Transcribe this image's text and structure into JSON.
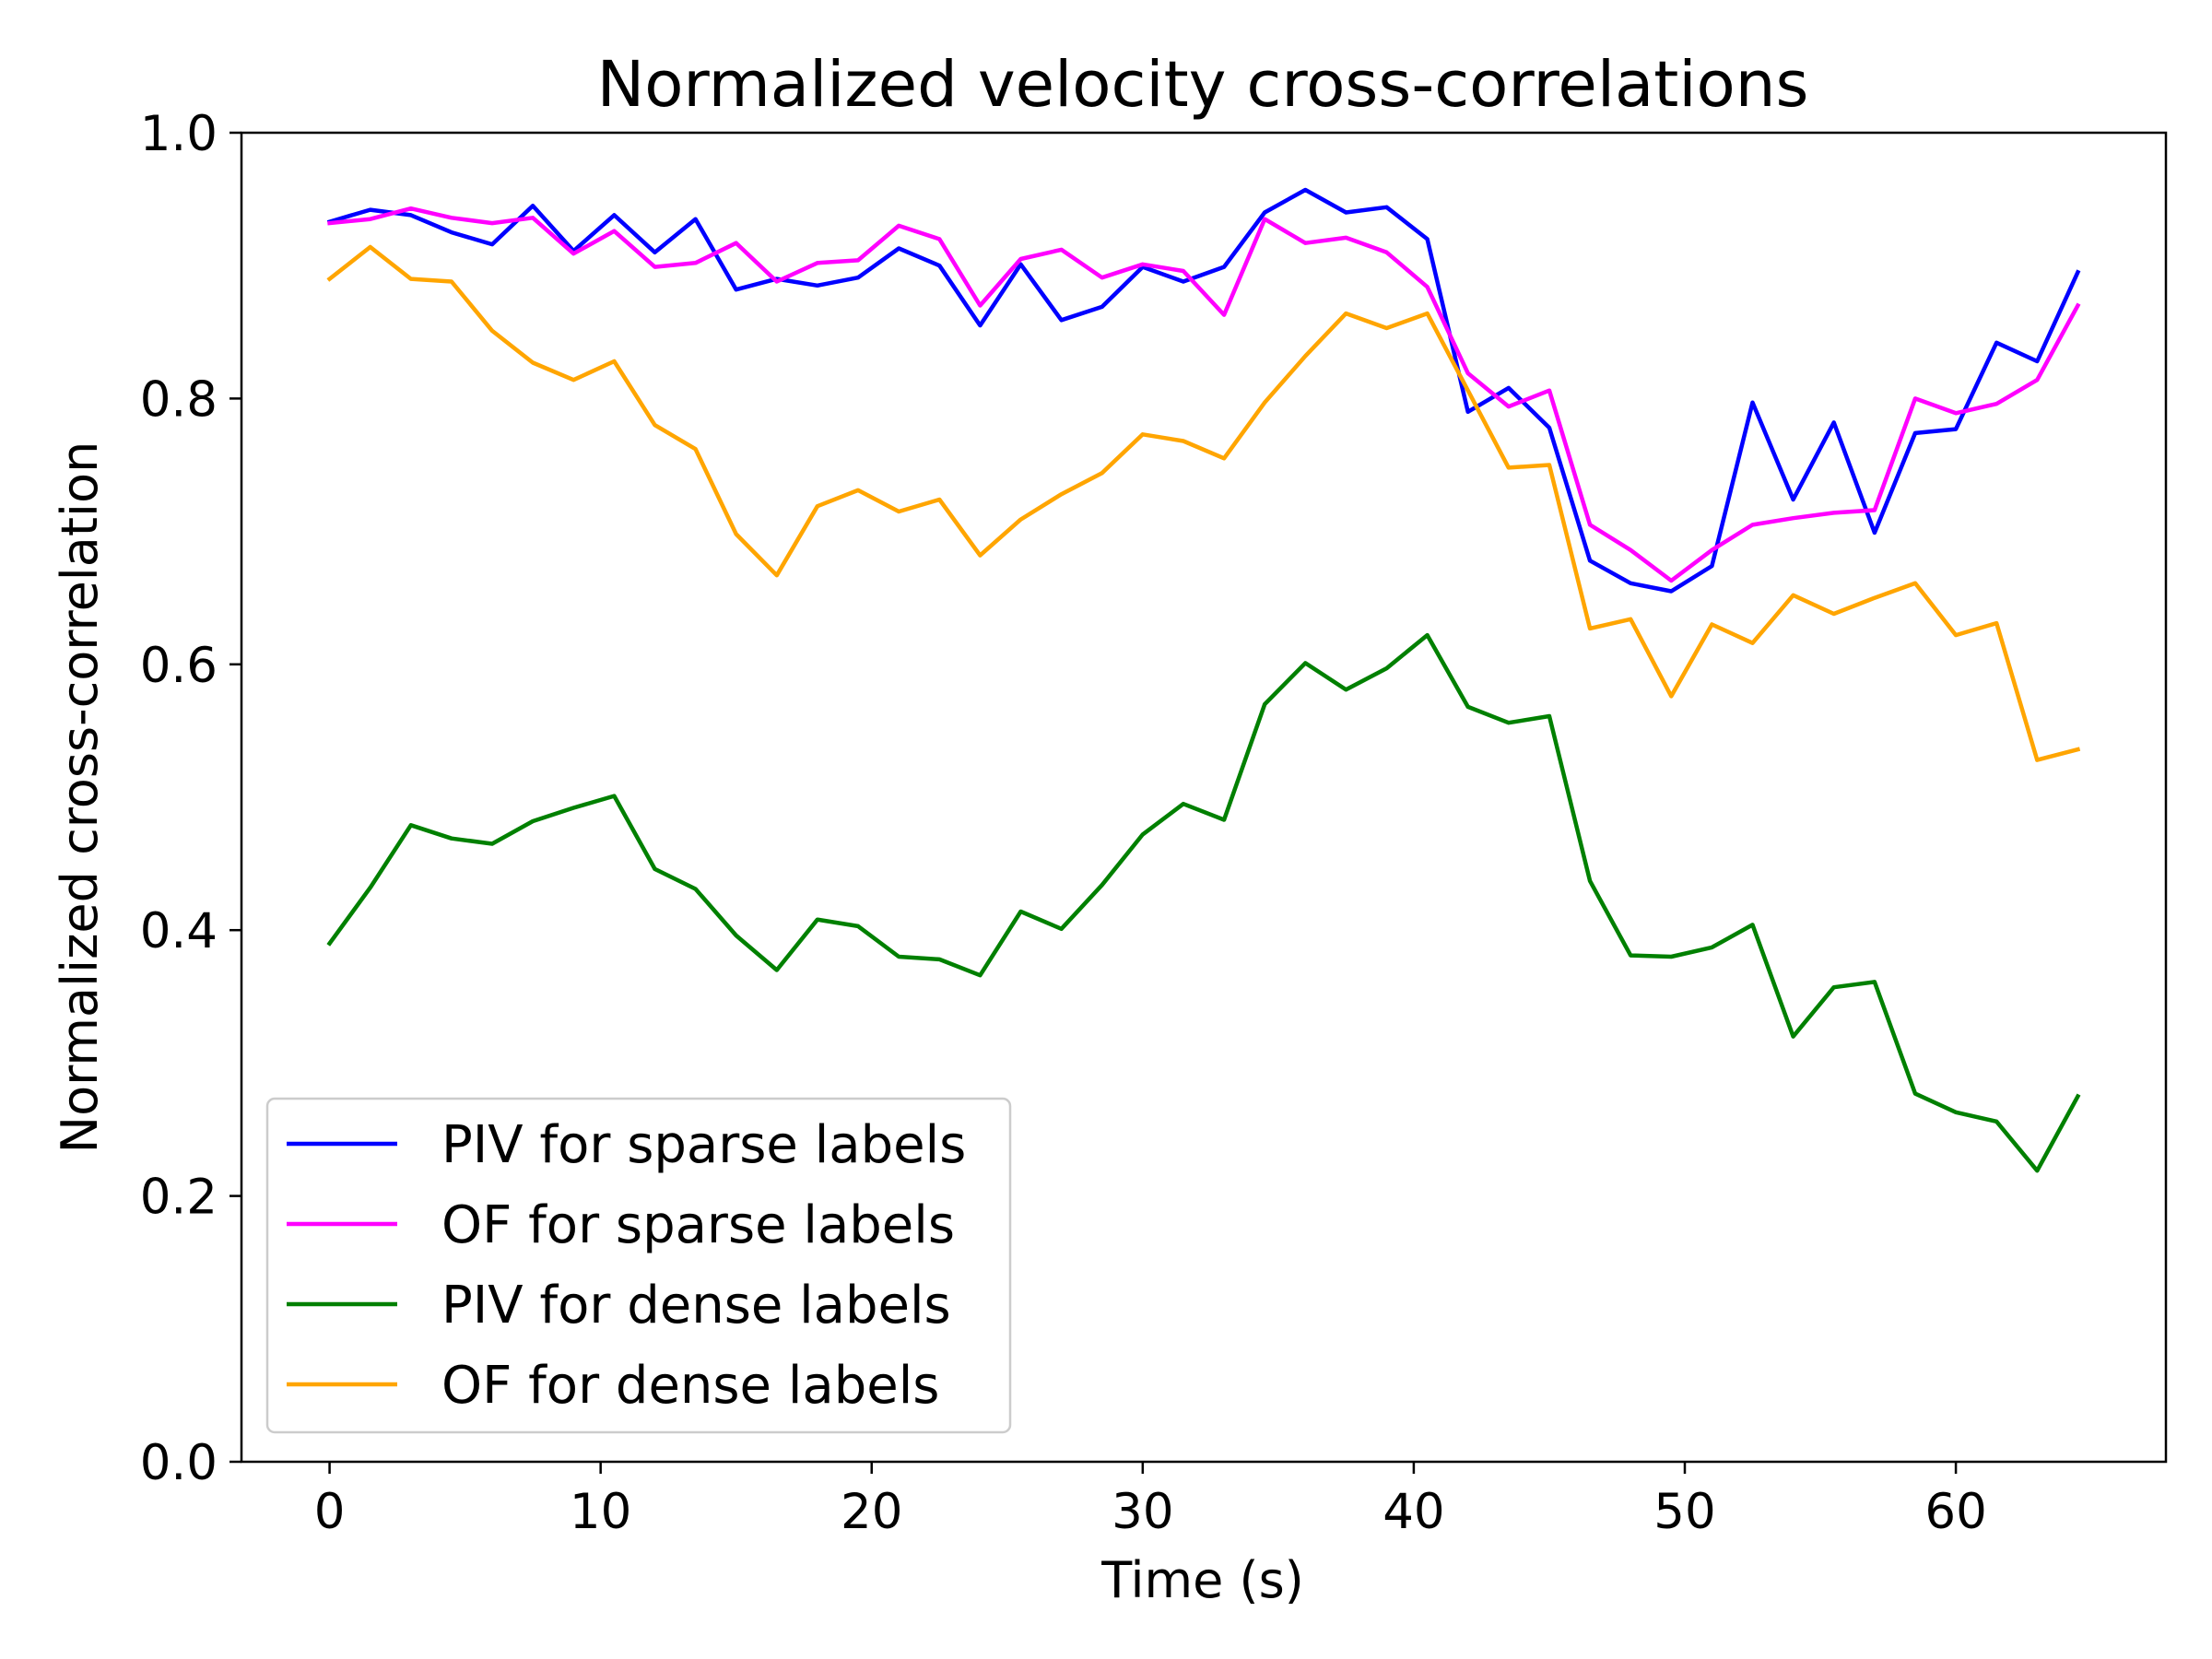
{
  "chart_data": {
    "type": "line",
    "title": "Normalized velocity cross-correlations",
    "xlabel": "Time (s)",
    "ylabel": "Normalized cross-correlation",
    "xlim": [
      -3.25,
      67.75
    ],
    "ylim": [
      0.0,
      1.0
    ],
    "xticks": [
      0,
      10,
      20,
      30,
      40,
      50,
      60
    ],
    "yticks": [
      0.0,
      0.2,
      0.4,
      0.6,
      0.8,
      1.0
    ],
    "xtick_labels": [
      "0",
      "10",
      "20",
      "30",
      "40",
      "50",
      "60"
    ],
    "ytick_labels": [
      "0.0",
      "0.2",
      "0.4",
      "0.6",
      "0.8",
      "1.0"
    ],
    "grid": false,
    "legend_position": "lower-left",
    "x": [
      0,
      1.5,
      3,
      4.5,
      6,
      7.5,
      9,
      10.5,
      12,
      13.5,
      15,
      16.5,
      18,
      19.5,
      21,
      22.5,
      24,
      25.5,
      27,
      28.5,
      30,
      31.5,
      33,
      34.5,
      36,
      37.5,
      39,
      40.5,
      42,
      43.5,
      45,
      46.5,
      48,
      49.5,
      51,
      52.5,
      54,
      55.5,
      57,
      58.5,
      60,
      61.5,
      63,
      64.5
    ],
    "series": [
      {
        "name": "PIV for sparse labels",
        "color": "#0000ff",
        "values": [
          0.933,
          0.942,
          0.938,
          0.925,
          0.916,
          0.945,
          0.911,
          0.938,
          0.91,
          0.935,
          0.882,
          0.89,
          0.885,
          0.891,
          0.913,
          0.9,
          0.855,
          0.901,
          0.859,
          0.869,
          0.899,
          0.888,
          0.899,
          0.94,
          0.957,
          0.94,
          0.944,
          0.92,
          0.79,
          0.808,
          0.778,
          0.678,
          0.661,
          0.655,
          0.674,
          0.797,
          0.724,
          0.782,
          0.699,
          0.774,
          0.777,
          0.842,
          0.828,
          0.895
        ]
      },
      {
        "name": "OF for sparse labels",
        "color": "#ff00ff",
        "values": [
          0.932,
          0.935,
          0.943,
          0.936,
          0.932,
          0.936,
          0.909,
          0.926,
          0.899,
          0.902,
          0.917,
          0.888,
          0.902,
          0.904,
          0.93,
          0.92,
          0.87,
          0.905,
          0.912,
          0.891,
          0.901,
          0.896,
          0.863,
          0.935,
          0.917,
          0.921,
          0.91,
          0.884,
          0.819,
          0.794,
          0.806,
          0.705,
          0.686,
          0.663,
          0.686,
          0.705,
          0.71,
          0.714,
          0.716,
          0.8,
          0.789,
          0.796,
          0.814,
          0.87
        ]
      },
      {
        "name": "PIV for dense labels",
        "color": "#008000",
        "values": [
          0.39,
          0.432,
          0.479,
          0.469,
          0.465,
          0.482,
          0.492,
          0.501,
          0.446,
          0.431,
          0.396,
          0.37,
          0.408,
          0.403,
          0.38,
          0.378,
          0.366,
          0.414,
          0.401,
          0.434,
          0.472,
          0.495,
          0.483,
          0.57,
          0.601,
          0.581,
          0.597,
          0.622,
          0.568,
          0.556,
          0.561,
          0.437,
          0.381,
          0.38,
          0.387,
          0.404,
          0.32,
          0.357,
          0.361,
          0.277,
          0.263,
          0.256,
          0.219,
          0.275
        ]
      },
      {
        "name": "OF for dense labels",
        "color": "#ffa500",
        "values": [
          0.89,
          0.914,
          0.89,
          0.888,
          0.851,
          0.827,
          0.814,
          0.828,
          0.78,
          0.762,
          0.698,
          0.667,
          0.719,
          0.731,
          0.715,
          0.724,
          0.682,
          0.709,
          0.728,
          0.744,
          0.773,
          0.768,
          0.755,
          0.797,
          0.832,
          0.864,
          0.853,
          0.864,
          0.806,
          0.748,
          0.75,
          0.627,
          0.634,
          0.576,
          0.63,
          0.616,
          0.652,
          0.638,
          0.65,
          0.661,
          0.622,
          0.631,
          0.528,
          0.536
        ]
      }
    ]
  }
}
